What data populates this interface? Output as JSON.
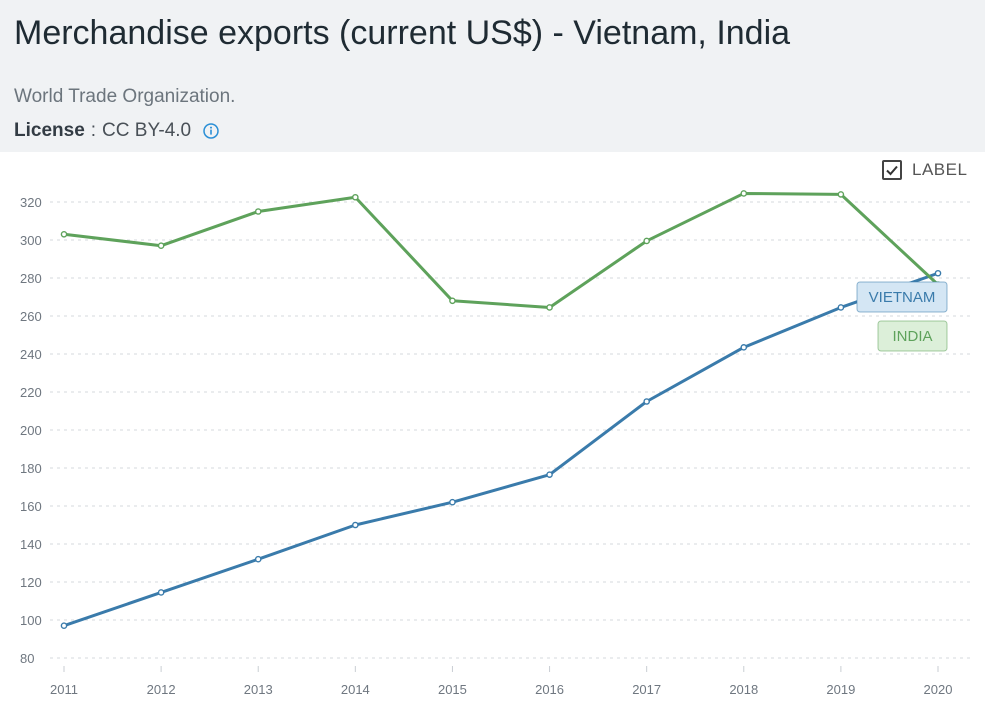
{
  "header": {
    "title": "Merchandise exports (current US$) - Vietnam, India",
    "source": "World Trade Organization.",
    "license_key": "License",
    "license_sep": ":",
    "license_value": "CC BY-4.0",
    "info_icon": "info-circle-icon"
  },
  "controls": {
    "label_toggle": "LABEL",
    "label_checked": true,
    "checkbox_icon": "checkmark-icon"
  },
  "colors": {
    "vietnam": "#3a7bab",
    "india": "#5ea25b",
    "grid": "#d6d9dc",
    "vietnam_tag_bg": "#d4e6f4",
    "india_tag_bg": "#dcefd9"
  },
  "chart_data": {
    "type": "line",
    "x": [
      "2011",
      "2012",
      "2013",
      "2014",
      "2015",
      "2016",
      "2017",
      "2018",
      "2019",
      "2020"
    ],
    "y_ticks": [
      80,
      100,
      120,
      140,
      160,
      180,
      200,
      220,
      240,
      260,
      280,
      300,
      320
    ],
    "ylim": [
      80,
      320
    ],
    "grid": "horizontal dashed",
    "series": [
      {
        "name": "VIETNAM",
        "key": "vietnam",
        "values": [
          97,
          114.5,
          132,
          150,
          162,
          176.5,
          215,
          243.5,
          264.5,
          282.5
        ]
      },
      {
        "name": "INDIA",
        "key": "india",
        "values": [
          303,
          297,
          315,
          322.5,
          268,
          264.5,
          299.5,
          324.5,
          324,
          276.5
        ]
      }
    ]
  }
}
